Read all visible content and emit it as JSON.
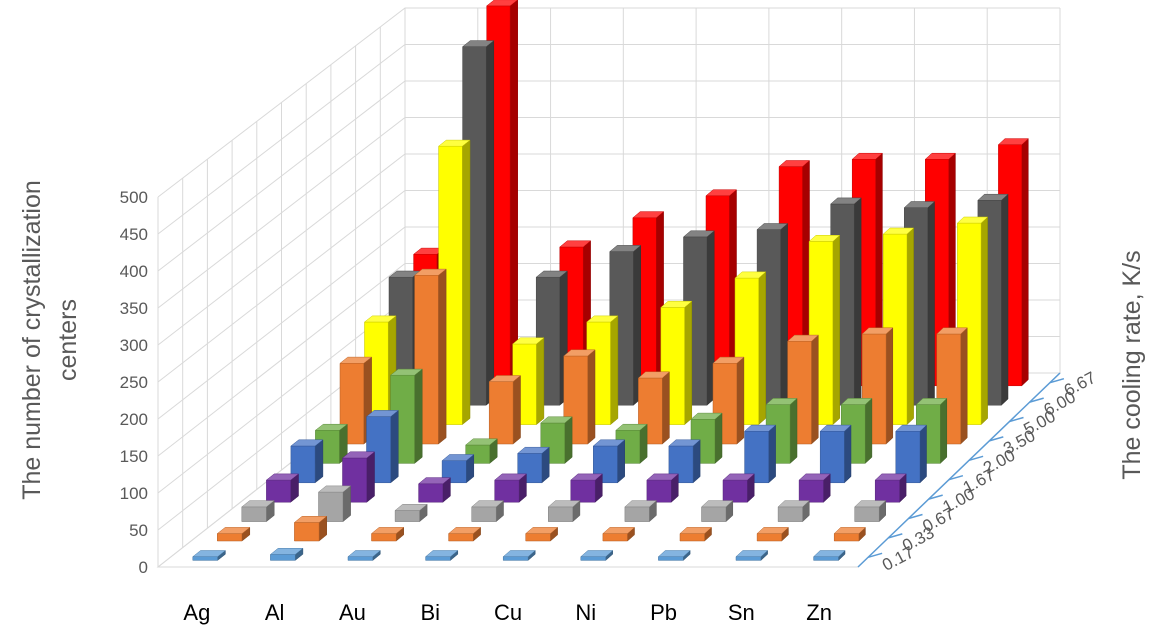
{
  "chart_data": {
    "type": "bar",
    "subtype": "3d-column",
    "ylabel": "The number of crystallization centers",
    "zlabel": "The cooling rate, K/s",
    "ylim": [
      0,
      500
    ],
    "ytick_step": 50,
    "yticks": [
      "0",
      "50",
      "100",
      "150",
      "200",
      "250",
      "300",
      "350",
      "400",
      "450",
      "500"
    ],
    "grid": true,
    "categories": [
      "Ag",
      "Al",
      "Au",
      "Bi",
      "Cu",
      "Ni",
      "Pb",
      "Sn",
      "Zn"
    ],
    "series": [
      {
        "name": "0.17",
        "color": "#5b9bd5",
        "values": [
          5,
          8,
          5,
          5,
          5,
          5,
          5,
          5,
          5
        ]
      },
      {
        "name": "0.33",
        "color": "#ed7d31",
        "values": [
          10,
          25,
          10,
          10,
          10,
          10,
          10,
          10,
          10
        ]
      },
      {
        "name": "0.67",
        "color": "#a5a5a5",
        "values": [
          20,
          40,
          15,
          20,
          20,
          20,
          20,
          20,
          20
        ]
      },
      {
        "name": "1.00",
        "color": "#7030a0",
        "values": [
          30,
          60,
          25,
          30,
          30,
          30,
          30,
          30,
          30
        ]
      },
      {
        "name": "1.67",
        "color": "#4472c4",
        "values": [
          50,
          90,
          30,
          40,
          50,
          50,
          70,
          70,
          70
        ]
      },
      {
        "name": "2.00",
        "color": "#70ad47",
        "values": [
          45,
          120,
          25,
          55,
          45,
          60,
          80,
          80,
          80
        ]
      },
      {
        "name": "3.50",
        "color": "#ed7d31",
        "values": [
          110,
          230,
          85,
          120,
          90,
          110,
          140,
          150,
          150
        ]
      },
      {
        "name": "5.00",
        "color": "#ffff00",
        "values": [
          140,
          380,
          110,
          140,
          160,
          200,
          250,
          260,
          275
        ]
      },
      {
        "name": "6.00",
        "color": "#595959",
        "values": [
          175,
          490,
          175,
          210,
          230,
          240,
          275,
          270,
          280
        ]
      },
      {
        "name": "6.67",
        "color": "#ff0000",
        "values": [
          180,
          520,
          190,
          230,
          260,
          300,
          310,
          310,
          330
        ]
      }
    ]
  }
}
